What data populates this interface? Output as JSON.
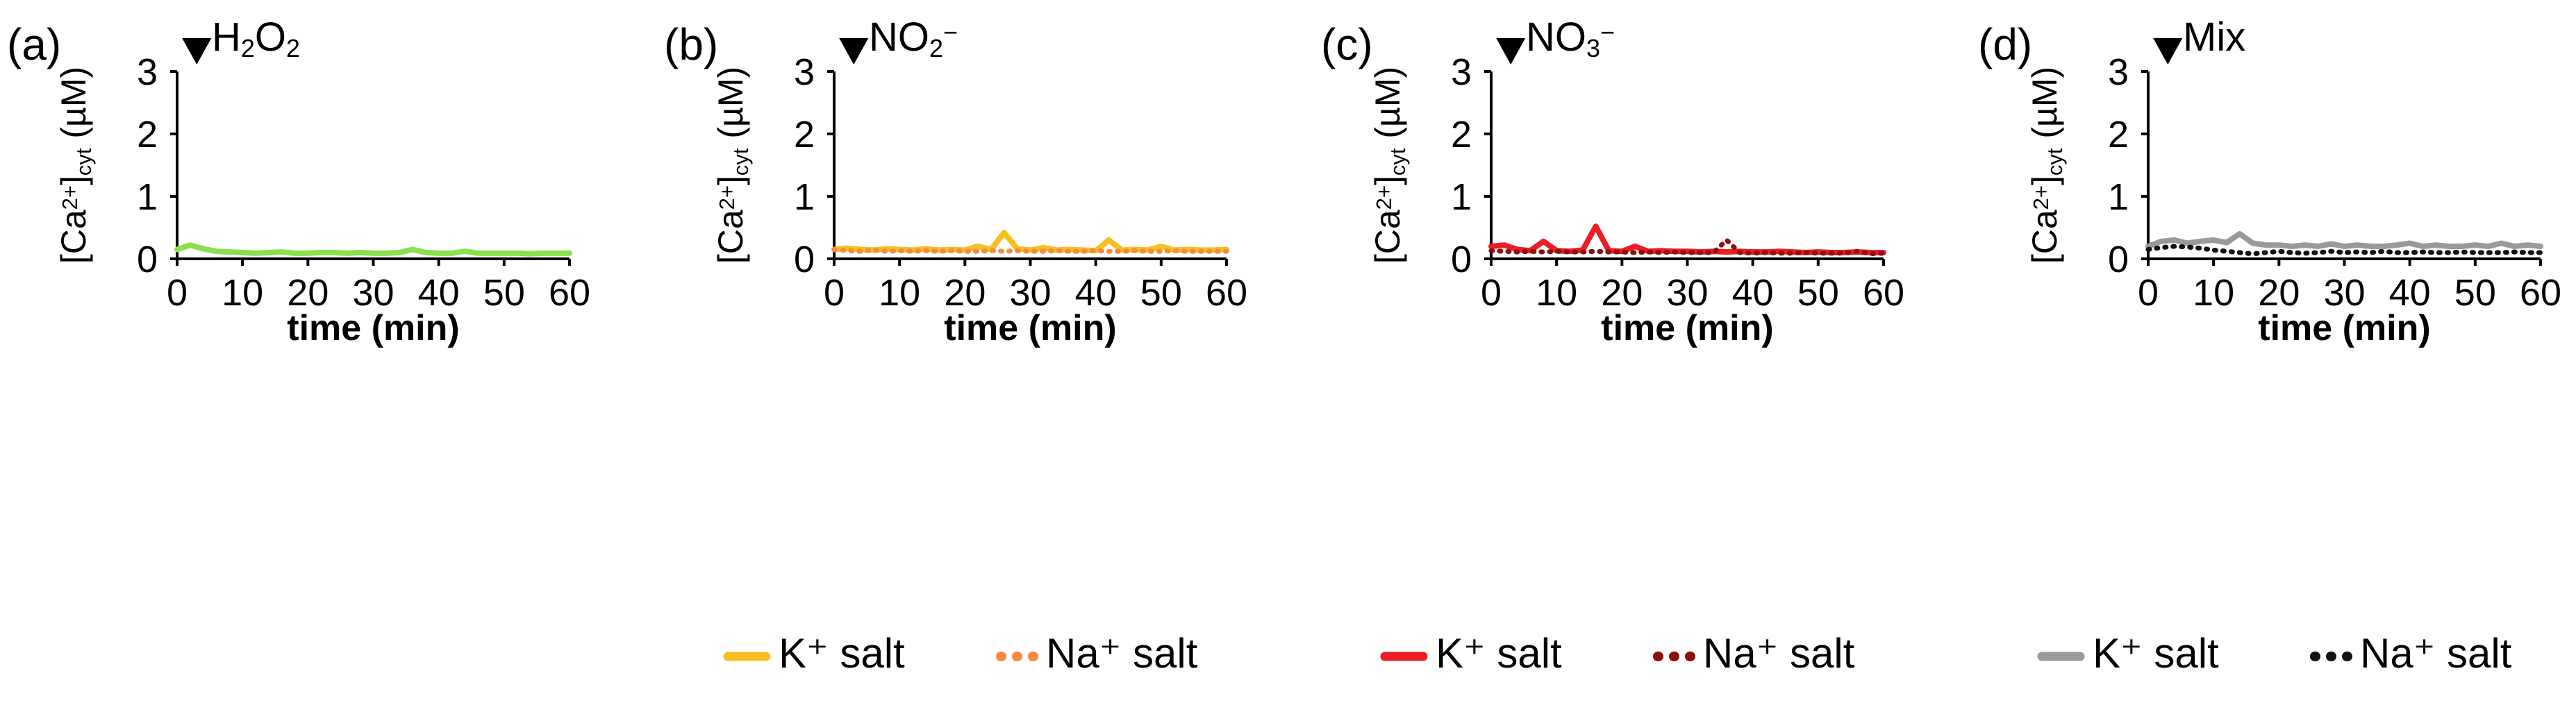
{
  "chart_data": [
    {
      "type": "line",
      "panel_label": "(a)",
      "treatment": "H2O2",
      "treatment_parts": [
        {
          "t": "H",
          "s": "n"
        },
        {
          "t": "2",
          "s": "sub"
        },
        {
          "t": "O",
          "s": "n"
        },
        {
          "t": "2",
          "s": "sub"
        }
      ],
      "xlabel": "time (min)",
      "ylabel_parts": [
        {
          "t": "[Ca",
          "s": "n"
        },
        {
          "t": "2+",
          "s": "sup"
        },
        {
          "t": "]",
          "s": "n"
        },
        {
          "t": "cyt",
          "s": "sub"
        },
        {
          "t": " (µM)",
          "s": "n"
        }
      ],
      "xlim": [
        0,
        60
      ],
      "ylim": [
        0,
        3
      ],
      "xticks": [
        0,
        10,
        20,
        30,
        40,
        50,
        60
      ],
      "yticks": [
        0,
        1,
        2,
        3
      ],
      "stimulus_time_min": 3,
      "series": [
        {
          "name": "H2O2",
          "style": "solid",
          "color": "#8be04e",
          "x": [
            0,
            2,
            4,
            6,
            8,
            10,
            12,
            14,
            16,
            18,
            20,
            22,
            24,
            26,
            28,
            30,
            32,
            34,
            36,
            38,
            40,
            42,
            44,
            46,
            48,
            50,
            52,
            54,
            56,
            58,
            60
          ],
          "values": [
            0.15,
            0.22,
            0.16,
            0.12,
            0.11,
            0.1,
            0.09,
            0.1,
            0.11,
            0.09,
            0.09,
            0.1,
            0.1,
            0.09,
            0.1,
            0.09,
            0.09,
            0.1,
            0.15,
            0.1,
            0.09,
            0.09,
            0.12,
            0.09,
            0.09,
            0.09,
            0.09,
            0.08,
            0.09,
            0.09,
            0.09
          ]
        }
      ]
    },
    {
      "type": "line",
      "panel_label": "(b)",
      "treatment": "NO2−",
      "treatment_parts": [
        {
          "t": "NO",
          "s": "n"
        },
        {
          "t": "2",
          "s": "sub"
        },
        {
          "t": "−",
          "s": "sup"
        }
      ],
      "xlabel": "time (min)",
      "ylabel_parts": [
        {
          "t": "[Ca",
          "s": "n"
        },
        {
          "t": "2+",
          "s": "sup"
        },
        {
          "t": "]",
          "s": "n"
        },
        {
          "t": "cyt",
          "s": "sub"
        },
        {
          "t": " (µM)",
          "s": "n"
        }
      ],
      "xlim": [
        0,
        60
      ],
      "ylim": [
        0,
        3
      ],
      "xticks": [
        0,
        10,
        20,
        30,
        40,
        50,
        60
      ],
      "yticks": [
        0,
        1,
        2,
        3
      ],
      "stimulus_time_min": 3,
      "series": [
        {
          "name": "K+ salt",
          "style": "solid",
          "color": "#f7c020",
          "x": [
            0,
            2,
            4,
            6,
            8,
            10,
            12,
            14,
            16,
            18,
            20,
            22,
            24,
            26,
            28,
            30,
            32,
            34,
            36,
            38,
            40,
            42,
            44,
            46,
            48,
            50,
            52,
            54,
            56,
            58,
            60
          ],
          "values": [
            0.15,
            0.17,
            0.15,
            0.14,
            0.16,
            0.15,
            0.14,
            0.16,
            0.14,
            0.15,
            0.14,
            0.2,
            0.15,
            0.42,
            0.16,
            0.14,
            0.18,
            0.14,
            0.15,
            0.14,
            0.13,
            0.3,
            0.14,
            0.15,
            0.14,
            0.2,
            0.14,
            0.15,
            0.14,
            0.14,
            0.15
          ]
        },
        {
          "name": "Na+ salt",
          "style": "dotted",
          "color": "#f58a40",
          "x": [
            0,
            2,
            4,
            6,
            8,
            10,
            12,
            14,
            16,
            18,
            20,
            22,
            24,
            26,
            28,
            30,
            32,
            34,
            36,
            38,
            40,
            42,
            44,
            46,
            48,
            50,
            52,
            54,
            56,
            58,
            60
          ],
          "values": [
            0.15,
            0.13,
            0.12,
            0.14,
            0.12,
            0.13,
            0.12,
            0.13,
            0.12,
            0.13,
            0.12,
            0.12,
            0.13,
            0.12,
            0.13,
            0.12,
            0.12,
            0.13,
            0.12,
            0.12,
            0.13,
            0.12,
            0.12,
            0.13,
            0.12,
            0.12,
            0.13,
            0.12,
            0.12,
            0.12,
            0.12
          ]
        }
      ]
    },
    {
      "type": "line",
      "panel_label": "(c)",
      "treatment": "NO3−",
      "treatment_parts": [
        {
          "t": "NO",
          "s": "n"
        },
        {
          "t": "3",
          "s": "sub"
        },
        {
          "t": "−",
          "s": "sup"
        }
      ],
      "xlabel": "time (min)",
      "ylabel_parts": [
        {
          "t": "[Ca",
          "s": "n"
        },
        {
          "t": "2+",
          "s": "sup"
        },
        {
          "t": "]",
          "s": "n"
        },
        {
          "t": "cyt",
          "s": "sub"
        },
        {
          "t": " (µM)",
          "s": "n"
        }
      ],
      "xlim": [
        0,
        60
      ],
      "ylim": [
        0,
        3
      ],
      "xticks": [
        0,
        10,
        20,
        30,
        40,
        50,
        60
      ],
      "yticks": [
        0,
        1,
        2,
        3
      ],
      "stimulus_time_min": 3,
      "series": [
        {
          "name": "K+ salt",
          "style": "solid",
          "color": "#ee1c25",
          "x": [
            0,
            2,
            4,
            6,
            8,
            10,
            12,
            14,
            16,
            18,
            20,
            22,
            24,
            26,
            28,
            30,
            32,
            34,
            36,
            38,
            40,
            42,
            44,
            46,
            48,
            50,
            52,
            54,
            56,
            58,
            60
          ],
          "values": [
            0.2,
            0.22,
            0.15,
            0.13,
            0.28,
            0.13,
            0.12,
            0.14,
            0.52,
            0.13,
            0.12,
            0.2,
            0.12,
            0.13,
            0.12,
            0.12,
            0.11,
            0.12,
            0.11,
            0.12,
            0.11,
            0.11,
            0.12,
            0.11,
            0.1,
            0.11,
            0.1,
            0.1,
            0.11,
            0.1,
            0.1
          ]
        },
        {
          "name": "Na+ salt",
          "style": "dotted",
          "color": "#8c1010",
          "x": [
            0,
            2,
            4,
            6,
            8,
            10,
            12,
            14,
            16,
            18,
            20,
            22,
            24,
            26,
            28,
            30,
            32,
            34,
            36,
            38,
            40,
            42,
            44,
            46,
            48,
            50,
            52,
            54,
            56,
            58,
            60
          ],
          "values": [
            0.13,
            0.12,
            0.11,
            0.12,
            0.11,
            0.12,
            0.11,
            0.11,
            0.12,
            0.11,
            0.11,
            0.1,
            0.11,
            0.1,
            0.11,
            0.1,
            0.1,
            0.1,
            0.3,
            0.1,
            0.09,
            0.1,
            0.09,
            0.09,
            0.1,
            0.09,
            0.09,
            0.09,
            0.12,
            0.08,
            0.09
          ]
        }
      ]
    },
    {
      "type": "line",
      "panel_label": "(d)",
      "treatment": "Mix",
      "treatment_parts": [
        {
          "t": "Mix",
          "s": "n"
        }
      ],
      "xlabel": "time (min)",
      "ylabel_parts": [
        {
          "t": "[Ca",
          "s": "n"
        },
        {
          "t": "2+",
          "s": "sup"
        },
        {
          "t": "]",
          "s": "n"
        },
        {
          "t": "cyt",
          "s": "sub"
        },
        {
          "t": " (µM)",
          "s": "n"
        }
      ],
      "xlim": [
        0,
        60
      ],
      "ylim": [
        0,
        3
      ],
      "xticks": [
        0,
        10,
        20,
        30,
        40,
        50,
        60
      ],
      "yticks": [
        0,
        1,
        2,
        3
      ],
      "stimulus_time_min": 3,
      "series": [
        {
          "name": "K+ salt",
          "style": "solid",
          "color": "#9a9a9a",
          "x": [
            0,
            2,
            4,
            6,
            8,
            10,
            12,
            14,
            16,
            18,
            20,
            22,
            24,
            26,
            28,
            30,
            32,
            34,
            36,
            38,
            40,
            42,
            44,
            46,
            48,
            50,
            52,
            54,
            56,
            58,
            60
          ],
          "values": [
            0.2,
            0.28,
            0.3,
            0.25,
            0.28,
            0.3,
            0.26,
            0.4,
            0.25,
            0.22,
            0.22,
            0.2,
            0.22,
            0.2,
            0.24,
            0.2,
            0.22,
            0.2,
            0.2,
            0.22,
            0.25,
            0.2,
            0.22,
            0.2,
            0.2,
            0.22,
            0.2,
            0.25,
            0.2,
            0.22,
            0.2
          ]
        },
        {
          "name": "Na+ salt",
          "style": "dotted",
          "color": "#111111",
          "x": [
            0,
            2,
            4,
            6,
            8,
            10,
            12,
            14,
            16,
            18,
            20,
            22,
            24,
            26,
            28,
            30,
            32,
            34,
            36,
            38,
            40,
            42,
            44,
            46,
            48,
            50,
            52,
            54,
            56,
            58,
            60
          ],
          "values": [
            0.15,
            0.18,
            0.2,
            0.19,
            0.17,
            0.14,
            0.12,
            0.1,
            0.08,
            0.1,
            0.12,
            0.1,
            0.09,
            0.1,
            0.12,
            0.1,
            0.11,
            0.1,
            0.12,
            0.1,
            0.1,
            0.11,
            0.1,
            0.1,
            0.11,
            0.1,
            0.1,
            0.1,
            0.11,
            0.1,
            0.1
          ]
        }
      ]
    }
  ],
  "legends": [
    {
      "panel": "(b)",
      "items": [
        {
          "label": "K⁺ salt",
          "style": "solid",
          "color": "#f7c020"
        },
        {
          "label": "Na⁺ salt",
          "style": "dotted",
          "color": "#f58a40"
        }
      ]
    },
    {
      "panel": "(c)",
      "items": [
        {
          "label": "K⁺ salt",
          "style": "solid",
          "color": "#ee1c25"
        },
        {
          "label": "Na⁺ salt",
          "style": "dotted",
          "color": "#8c1010"
        }
      ]
    },
    {
      "panel": "(d)",
      "items": [
        {
          "label": "K⁺ salt",
          "style": "solid",
          "color": "#9a9a9a"
        },
        {
          "label": "Na⁺ salt",
          "style": "dotted",
          "color": "#111111"
        }
      ]
    }
  ]
}
